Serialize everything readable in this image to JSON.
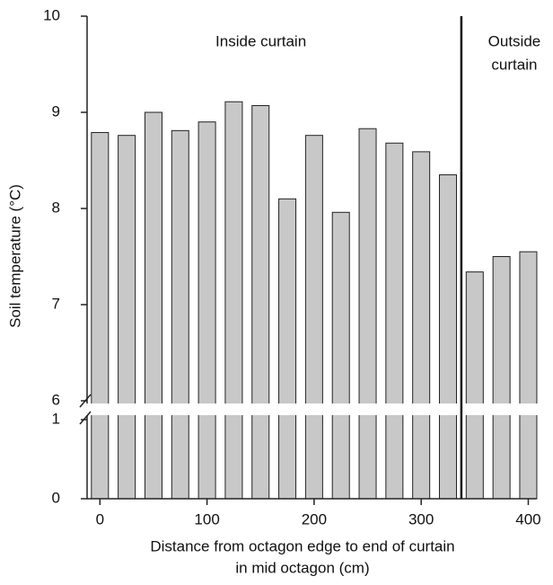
{
  "chart_data": {
    "type": "bar",
    "xlabel": [
      "Distance from octagon edge to end of curtain",
      "in mid octagon (cm)"
    ],
    "ylabel": "Soil temperature (°C)",
    "x": [
      0,
      25,
      50,
      75,
      100,
      125,
      150,
      175,
      200,
      225,
      250,
      275,
      300,
      325,
      350,
      375,
      400
    ],
    "values": [
      8.79,
      8.76,
      9.0,
      8.81,
      8.9,
      9.11,
      9.07,
      8.1,
      8.76,
      7.96,
      8.83,
      8.68,
      8.59,
      8.35,
      7.34,
      7.5,
      7.55
    ],
    "color": "#c8c8c8",
    "xlim": [
      -12,
      408
    ],
    "xticks": [
      0,
      100,
      200,
      300,
      400
    ],
    "ylim": [
      0,
      10
    ],
    "y_break": [
      1,
      6
    ],
    "yticks": [
      0,
      1,
      6,
      7,
      8,
      9,
      10
    ],
    "divider_x": 337.5,
    "annotations": [
      {
        "text": [
          "Inside curtain"
        ],
        "x": 100
      },
      {
        "text": [
          "Outside",
          "curtain"
        ],
        "x": 387
      }
    ]
  }
}
